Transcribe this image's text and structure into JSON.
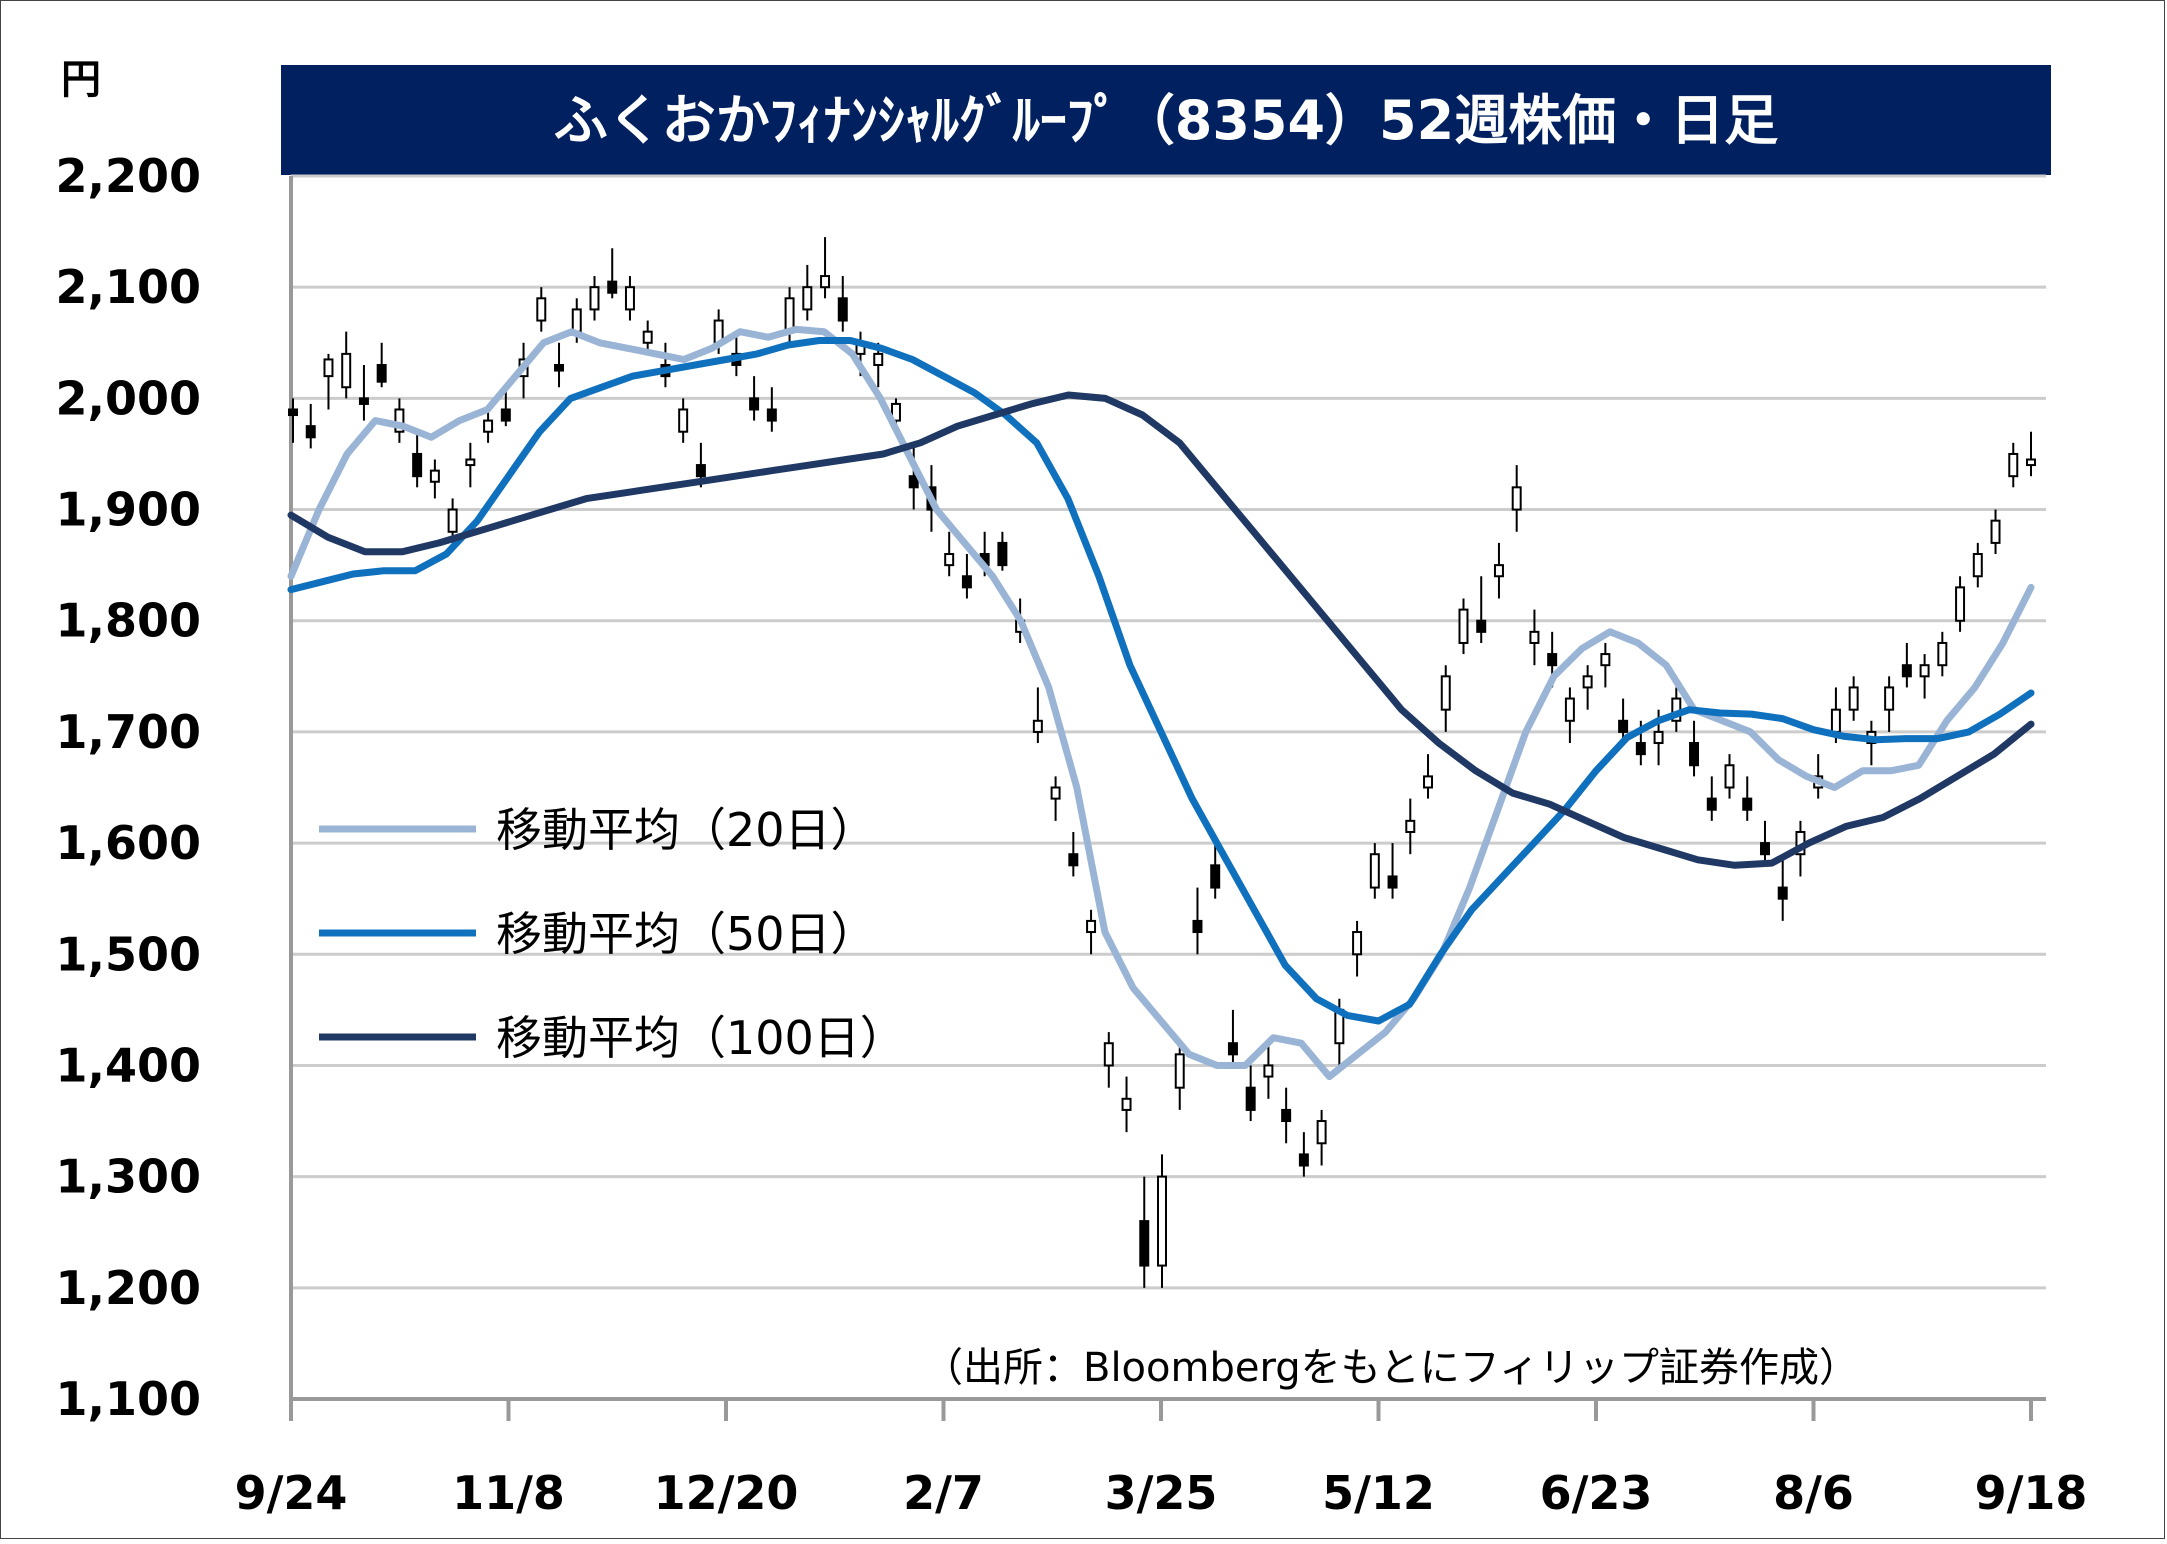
{
  "chart_data": {
    "type": "candlestick",
    "title": "ふくおかﾌｨﾅﾝｼｬﾙｸﾞﾙｰﾌﾟ（8354）52週株価・日足",
    "unit": "円",
    "source": "（出所：Bloombergをもとにフィリップ証券作成）",
    "ylim": [
      1100,
      2200
    ],
    "yticks": [
      "2,200",
      "2,100",
      "2,000",
      "1,900",
      "1,800",
      "1,700",
      "1,600",
      "1,500",
      "1,400",
      "1,300",
      "1,200",
      "1,100"
    ],
    "xticks": [
      "9/24",
      "11/8",
      "12/20",
      "2/7",
      "3/25",
      "5/12",
      "6/23",
      "8/6",
      "9/18"
    ],
    "grid": true,
    "legend_position": "left",
    "colors": {
      "title_bg": "#002060",
      "ma20": "#9ab4d6",
      "ma50": "#0f70be",
      "ma100": "#1f3864",
      "candle": "#000000",
      "grid": "#cccccc"
    },
    "series": [
      {
        "name": "移動平均（20日）",
        "color": "#9ab4d6",
        "points": [
          [
            0,
            1840
          ],
          [
            5,
            1900
          ],
          [
            10,
            1950
          ],
          [
            15,
            1980
          ],
          [
            20,
            1975
          ],
          [
            25,
            1965
          ],
          [
            30,
            1980
          ],
          [
            35,
            1990
          ],
          [
            40,
            2020
          ],
          [
            45,
            2050
          ],
          [
            50,
            2060
          ],
          [
            55,
            2050
          ],
          [
            60,
            2045
          ],
          [
            65,
            2040
          ],
          [
            70,
            2035
          ],
          [
            75,
            2045
          ],
          [
            80,
            2060
          ],
          [
            85,
            2055
          ],
          [
            90,
            2062
          ],
          [
            95,
            2060
          ],
          [
            100,
            2040
          ],
          [
            105,
            2000
          ],
          [
            110,
            1950
          ],
          [
            115,
            1900
          ],
          [
            120,
            1870
          ],
          [
            125,
            1840
          ],
          [
            130,
            1800
          ],
          [
            135,
            1740
          ],
          [
            140,
            1650
          ],
          [
            145,
            1520
          ],
          [
            150,
            1470
          ],
          [
            155,
            1440
          ],
          [
            160,
            1410
          ],
          [
            165,
            1400
          ],
          [
            170,
            1400
          ],
          [
            175,
            1425
          ],
          [
            180,
            1420
          ],
          [
            185,
            1390
          ],
          [
            190,
            1410
          ],
          [
            195,
            1430
          ],
          [
            200,
            1460
          ],
          [
            205,
            1500
          ],
          [
            210,
            1560
          ],
          [
            215,
            1630
          ],
          [
            220,
            1700
          ],
          [
            225,
            1750
          ],
          [
            230,
            1775
          ],
          [
            235,
            1790
          ],
          [
            240,
            1780
          ],
          [
            245,
            1760
          ],
          [
            250,
            1720
          ],
          [
            255,
            1710
          ],
          [
            260,
            1700
          ],
          [
            265,
            1675
          ],
          [
            270,
            1660
          ],
          [
            275,
            1650
          ],
          [
            280,
            1665
          ],
          [
            285,
            1665
          ],
          [
            290,
            1670
          ],
          [
            295,
            1710
          ],
          [
            300,
            1740
          ],
          [
            305,
            1780
          ],
          [
            310,
            1830
          ]
        ]
      },
      {
        "name": "移動平均（50日）",
        "color": "#0f70be",
        "points": [
          [
            0,
            1828
          ],
          [
            5,
            1835
          ],
          [
            10,
            1842
          ],
          [
            15,
            1845
          ],
          [
            20,
            1845
          ],
          [
            25,
            1860
          ],
          [
            30,
            1890
          ],
          [
            35,
            1930
          ],
          [
            40,
            1970
          ],
          [
            45,
            2000
          ],
          [
            50,
            2010
          ],
          [
            55,
            2020
          ],
          [
            60,
            2025
          ],
          [
            65,
            2030
          ],
          [
            70,
            2035
          ],
          [
            75,
            2040
          ],
          [
            80,
            2048
          ],
          [
            85,
            2052
          ],
          [
            90,
            2052
          ],
          [
            95,
            2045
          ],
          [
            100,
            2035
          ],
          [
            105,
            2020
          ],
          [
            110,
            2005
          ],
          [
            115,
            1985
          ],
          [
            120,
            1960
          ],
          [
            125,
            1910
          ],
          [
            130,
            1840
          ],
          [
            135,
            1760
          ],
          [
            140,
            1700
          ],
          [
            145,
            1640
          ],
          [
            150,
            1590
          ],
          [
            155,
            1540
          ],
          [
            160,
            1490
          ],
          [
            165,
            1460
          ],
          [
            170,
            1445
          ],
          [
            175,
            1440
          ],
          [
            180,
            1455
          ],
          [
            185,
            1500
          ],
          [
            190,
            1540
          ],
          [
            195,
            1570
          ],
          [
            200,
            1600
          ],
          [
            205,
            1630
          ],
          [
            210,
            1665
          ],
          [
            215,
            1695
          ],
          [
            220,
            1710
          ],
          [
            225,
            1720
          ],
          [
            230,
            1717
          ],
          [
            235,
            1716
          ],
          [
            240,
            1712
          ],
          [
            245,
            1702
          ],
          [
            250,
            1696
          ],
          [
            255,
            1693
          ],
          [
            260,
            1694
          ],
          [
            265,
            1694
          ],
          [
            270,
            1700
          ],
          [
            275,
            1716
          ],
          [
            280,
            1735
          ]
        ]
      },
      {
        "name": "移動平均（100日）",
        "color": "#1f3864",
        "points": [
          [
            0,
            1895
          ],
          [
            5,
            1875
          ],
          [
            10,
            1862
          ],
          [
            15,
            1862
          ],
          [
            20,
            1870
          ],
          [
            25,
            1880
          ],
          [
            30,
            1890
          ],
          [
            35,
            1900
          ],
          [
            40,
            1910
          ],
          [
            45,
            1915
          ],
          [
            50,
            1920
          ],
          [
            55,
            1925
          ],
          [
            60,
            1930
          ],
          [
            65,
            1935
          ],
          [
            70,
            1940
          ],
          [
            75,
            1945
          ],
          [
            80,
            1950
          ],
          [
            85,
            1960
          ],
          [
            90,
            1975
          ],
          [
            95,
            1985
          ],
          [
            100,
            1995
          ],
          [
            105,
            2003
          ],
          [
            110,
            2000
          ],
          [
            115,
            1985
          ],
          [
            120,
            1960
          ],
          [
            125,
            1920
          ],
          [
            130,
            1880
          ],
          [
            135,
            1840
          ],
          [
            140,
            1800
          ],
          [
            145,
            1760
          ],
          [
            150,
            1720
          ],
          [
            155,
            1690
          ],
          [
            160,
            1665
          ],
          [
            165,
            1645
          ],
          [
            170,
            1635
          ],
          [
            175,
            1620
          ],
          [
            180,
            1605
          ],
          [
            185,
            1595
          ],
          [
            190,
            1585
          ],
          [
            195,
            1580
          ],
          [
            200,
            1582
          ],
          [
            205,
            1600
          ],
          [
            210,
            1615
          ],
          [
            215,
            1623
          ],
          [
            220,
            1640
          ],
          [
            225,
            1660
          ],
          [
            230,
            1680
          ],
          [
            235,
            1707
          ]
        ]
      }
    ],
    "candles": [
      [
        0,
        1990,
        2000,
        1960,
        1985
      ],
      [
        1,
        1975,
        1995,
        1955,
        1965
      ],
      [
        2,
        2020,
        2040,
        1990,
        2035
      ],
      [
        3,
        2010,
        2060,
        2000,
        2040
      ],
      [
        4,
        2000,
        2030,
        1980,
        1995
      ],
      [
        5,
        2030,
        2050,
        2010,
        2015
      ],
      [
        6,
        1970,
        2000,
        1960,
        1990
      ],
      [
        7,
        1950,
        1970,
        1920,
        1930
      ],
      [
        8,
        1925,
        1945,
        1910,
        1935
      ],
      [
        9,
        1880,
        1910,
        1870,
        1900
      ],
      [
        10,
        1940,
        1960,
        1920,
        1945
      ],
      [
        11,
        1970,
        1990,
        1960,
        1980
      ],
      [
        12,
        1990,
        2010,
        1975,
        1980
      ],
      [
        13,
        2020,
        2050,
        2000,
        2035
      ],
      [
        14,
        2070,
        2100,
        2060,
        2090
      ],
      [
        15,
        2030,
        2050,
        2010,
        2025
      ],
      [
        16,
        2060,
        2090,
        2050,
        2080
      ],
      [
        17,
        2080,
        2110,
        2070,
        2100
      ],
      [
        18,
        2105,
        2135,
        2090,
        2095
      ],
      [
        19,
        2080,
        2110,
        2070,
        2100
      ],
      [
        20,
        2050,
        2070,
        2040,
        2060
      ],
      [
        21,
        2030,
        2050,
        2010,
        2020
      ],
      [
        22,
        1970,
        2000,
        1960,
        1990
      ],
      [
        23,
        1940,
        1960,
        1920,
        1930
      ],
      [
        24,
        2050,
        2080,
        2040,
        2070
      ],
      [
        25,
        2040,
        2060,
        2020,
        2030
      ],
      [
        26,
        2000,
        2020,
        1980,
        1990
      ],
      [
        27,
        1990,
        2010,
        1970,
        1980
      ],
      [
        28,
        2060,
        2100,
        2050,
        2090
      ],
      [
        29,
        2080,
        2120,
        2070,
        2100
      ],
      [
        30,
        2100,
        2145,
        2090,
        2110
      ],
      [
        31,
        2090,
        2110,
        2060,
        2070
      ],
      [
        32,
        2040,
        2060,
        2020,
        2050
      ],
      [
        33,
        2030,
        2050,
        2010,
        2040
      ],
      [
        34,
        1980,
        2000,
        1970,
        1995
      ],
      [
        35,
        1930,
        1960,
        1900,
        1920
      ],
      [
        36,
        1920,
        1940,
        1880,
        1900
      ],
      [
        37,
        1850,
        1880,
        1840,
        1860
      ],
      [
        38,
        1840,
        1860,
        1820,
        1830
      ],
      [
        39,
        1860,
        1880,
        1840,
        1850
      ],
      [
        40,
        1870,
        1880,
        1845,
        1850
      ],
      [
        41,
        1790,
        1820,
        1780,
        1800
      ],
      [
        42,
        1700,
        1740,
        1690,
        1710
      ],
      [
        43,
        1640,
        1660,
        1620,
        1650
      ],
      [
        44,
        1590,
        1610,
        1570,
        1580
      ],
      [
        45,
        1520,
        1540,
        1500,
        1530
      ],
      [
        46,
        1400,
        1430,
        1380,
        1420
      ],
      [
        47,
        1360,
        1390,
        1340,
        1370
      ],
      [
        48,
        1260,
        1300,
        1200,
        1220
      ],
      [
        49,
        1220,
        1320,
        1200,
        1300
      ],
      [
        50,
        1380,
        1420,
        1360,
        1410
      ],
      [
        51,
        1530,
        1560,
        1500,
        1520
      ],
      [
        52,
        1580,
        1600,
        1550,
        1560
      ],
      [
        53,
        1420,
        1450,
        1400,
        1410
      ],
      [
        54,
        1380,
        1400,
        1350,
        1360
      ],
      [
        55,
        1390,
        1420,
        1370,
        1400
      ],
      [
        56,
        1360,
        1380,
        1330,
        1350
      ],
      [
        57,
        1320,
        1340,
        1300,
        1310
      ],
      [
        58,
        1330,
        1360,
        1310,
        1350
      ],
      [
        59,
        1420,
        1460,
        1400,
        1450
      ],
      [
        60,
        1500,
        1530,
        1480,
        1520
      ],
      [
        61,
        1560,
        1600,
        1550,
        1590
      ],
      [
        62,
        1570,
        1600,
        1550,
        1560
      ],
      [
        63,
        1610,
        1640,
        1590,
        1620
      ],
      [
        64,
        1650,
        1680,
        1640,
        1660
      ],
      [
        65,
        1720,
        1760,
        1700,
        1750
      ],
      [
        66,
        1780,
        1820,
        1770,
        1810
      ],
      [
        67,
        1800,
        1840,
        1780,
        1790
      ],
      [
        68,
        1840,
        1870,
        1820,
        1850
      ],
      [
        69,
        1900,
        1940,
        1880,
        1920
      ],
      [
        70,
        1780,
        1810,
        1760,
        1790
      ],
      [
        71,
        1770,
        1790,
        1740,
        1760
      ],
      [
        72,
        1710,
        1740,
        1690,
        1730
      ],
      [
        73,
        1740,
        1760,
        1720,
        1750
      ],
      [
        74,
        1760,
        1780,
        1740,
        1770
      ],
      [
        75,
        1710,
        1730,
        1690,
        1700
      ],
      [
        76,
        1690,
        1710,
        1670,
        1680
      ],
      [
        77,
        1690,
        1720,
        1670,
        1700
      ],
      [
        78,
        1710,
        1740,
        1700,
        1730
      ],
      [
        79,
        1690,
        1710,
        1660,
        1670
      ],
      [
        80,
        1640,
        1660,
        1620,
        1630
      ],
      [
        81,
        1650,
        1680,
        1640,
        1670
      ],
      [
        82,
        1640,
        1660,
        1620,
        1630
      ],
      [
        83,
        1600,
        1620,
        1580,
        1590
      ],
      [
        84,
        1560,
        1590,
        1530,
        1550
      ],
      [
        85,
        1590,
        1620,
        1570,
        1610
      ],
      [
        86,
        1650,
        1680,
        1640,
        1660
      ],
      [
        87,
        1700,
        1740,
        1690,
        1720
      ],
      [
        88,
        1720,
        1750,
        1710,
        1740
      ],
      [
        89,
        1690,
        1710,
        1670,
        1700
      ],
      [
        90,
        1720,
        1750,
        1700,
        1740
      ],
      [
        91,
        1760,
        1780,
        1740,
        1750
      ],
      [
        92,
        1750,
        1770,
        1730,
        1760
      ],
      [
        93,
        1760,
        1790,
        1750,
        1780
      ],
      [
        94,
        1800,
        1840,
        1790,
        1830
      ],
      [
        95,
        1840,
        1870,
        1830,
        1860
      ],
      [
        96,
        1870,
        1900,
        1860,
        1890
      ],
      [
        97,
        1930,
        1960,
        1920,
        1950
      ],
      [
        98,
        1940,
        1970,
        1930,
        1945
      ]
    ]
  }
}
